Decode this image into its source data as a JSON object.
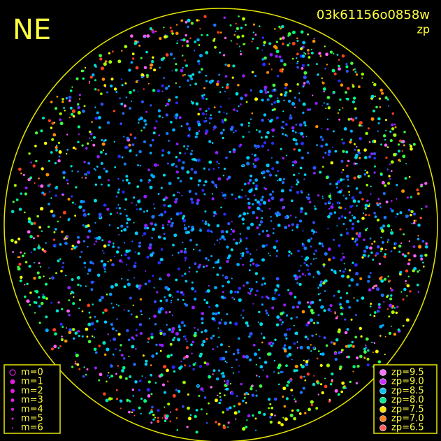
{
  "header": {
    "direction": "NE",
    "frame_id": "03k61156o0858w",
    "mode": "zp"
  },
  "legend_m": {
    "items": [
      "m=0",
      "m=1",
      "m=2",
      "m=3",
      "m=4",
      "m=5",
      "m=6"
    ]
  },
  "legend_zp": {
    "items": [
      "zp=9.5",
      "zp=9.0",
      "zp=8.5",
      "zp=8.0",
      "zp=7.5",
      "zp=7.0",
      "zp=6.5"
    ]
  }
}
